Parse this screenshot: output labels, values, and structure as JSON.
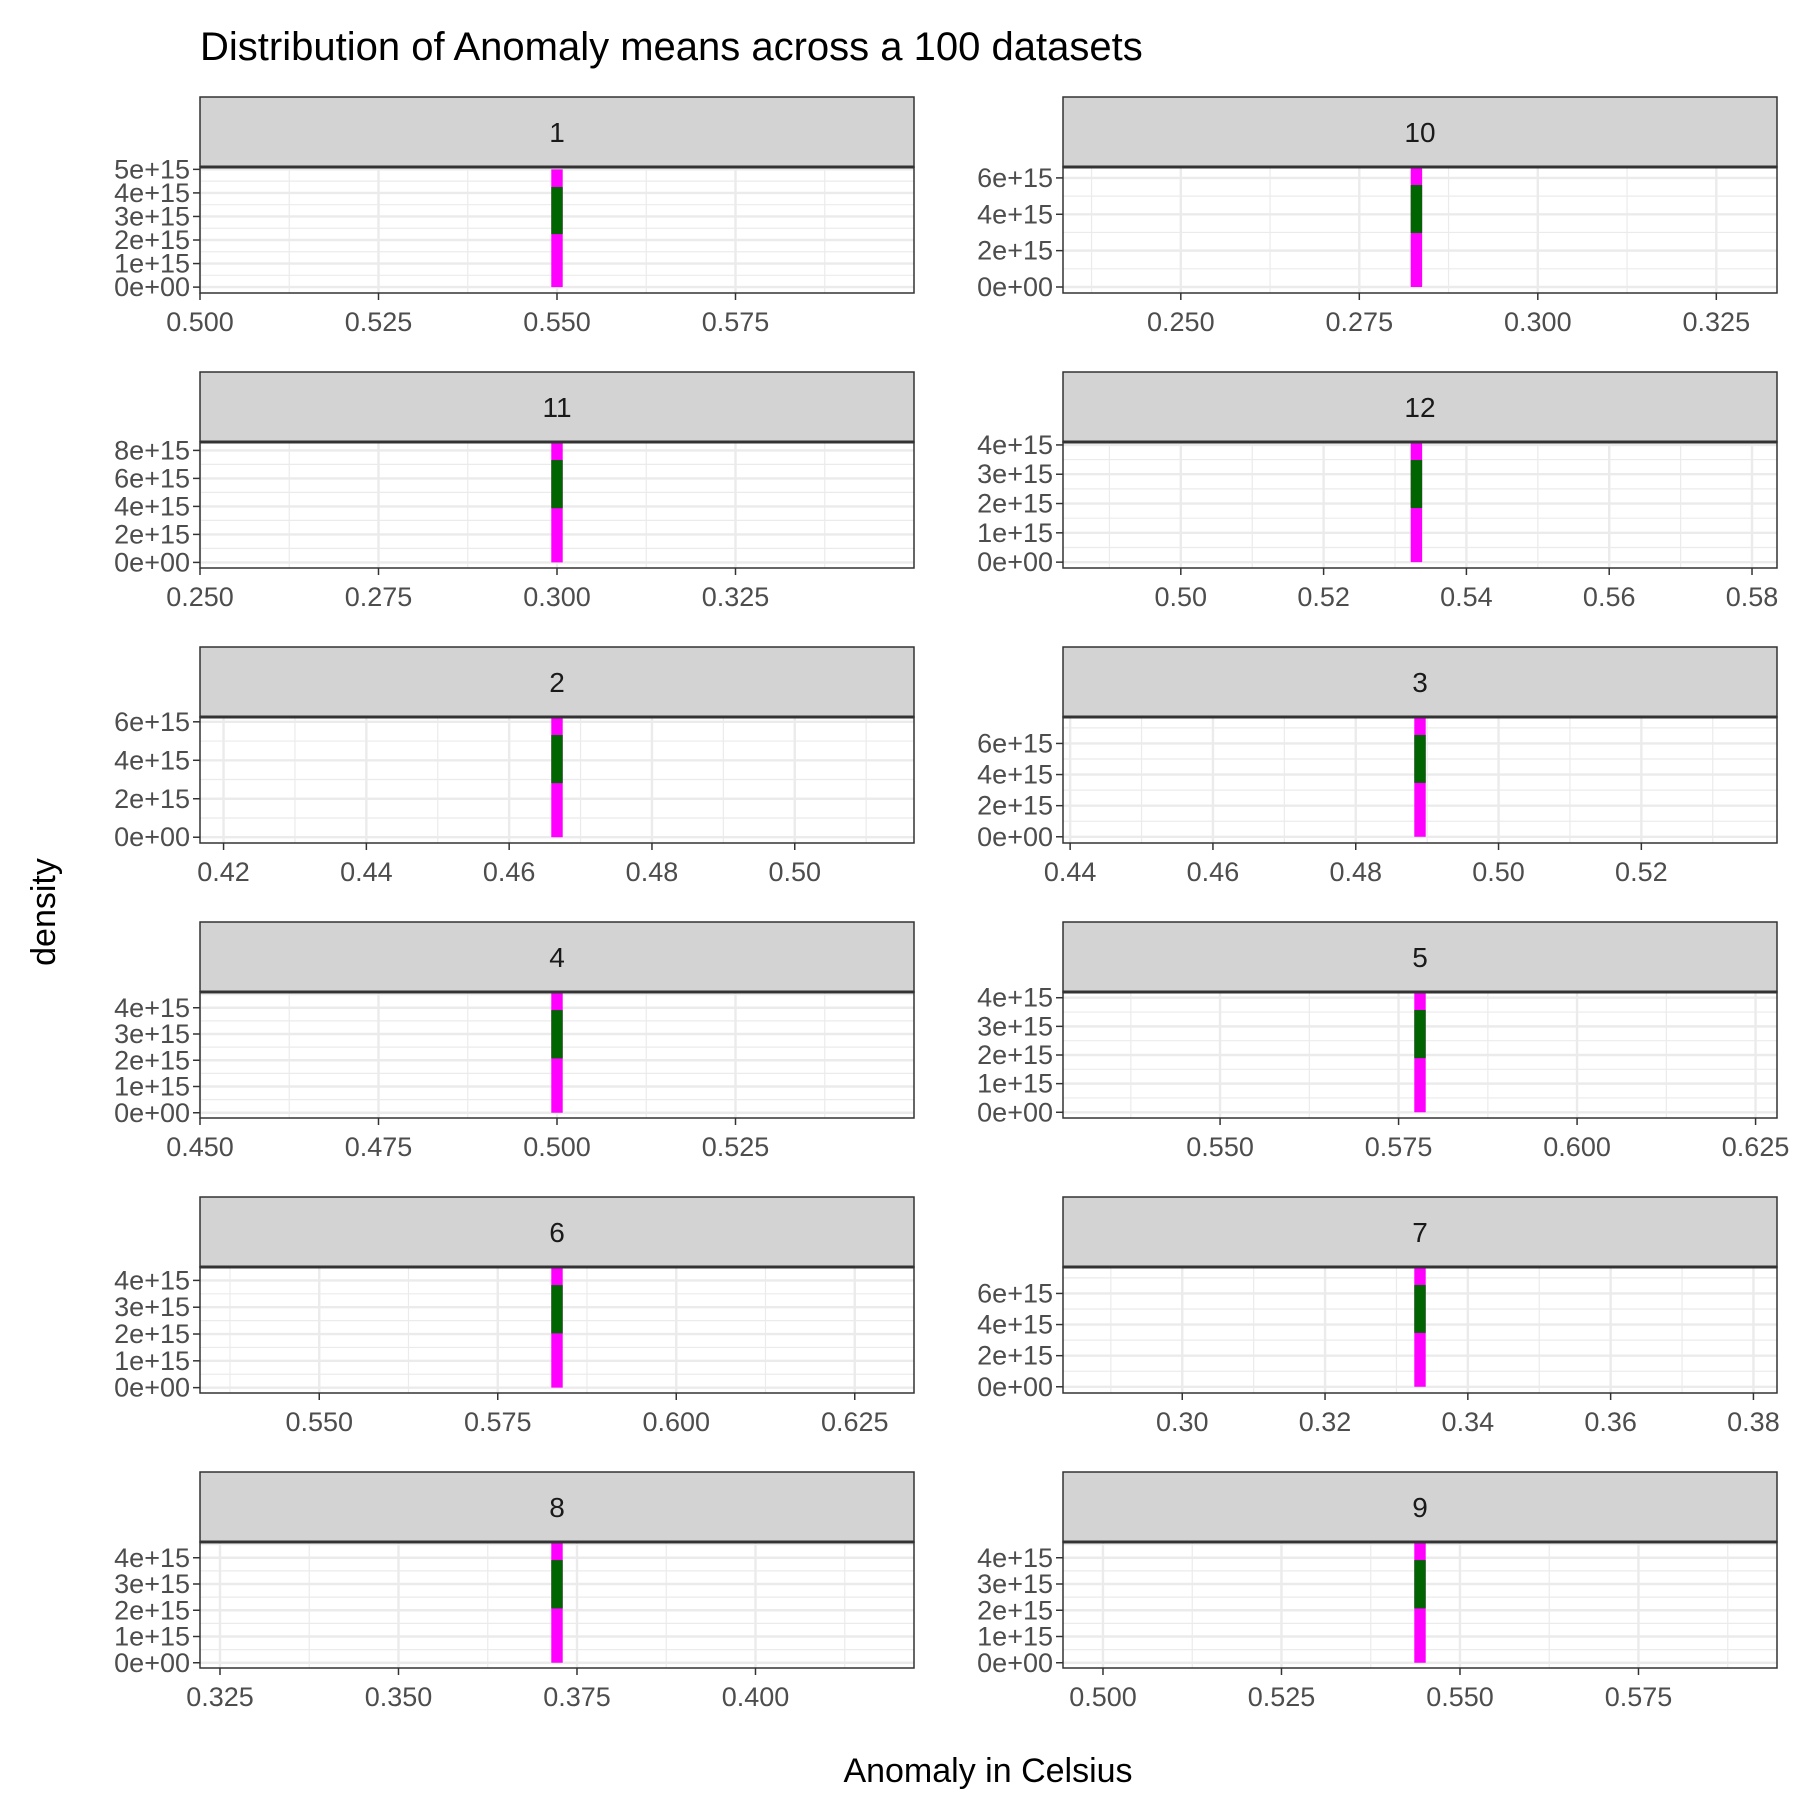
{
  "chart_data": {
    "type": "histogram-facets",
    "title": "Distribution of Anomaly means across a 100 datasets",
    "xlabel": "Anomaly in Celsius",
    "ylabel": "density",
    "grid": true,
    "colors": {
      "bar": "#ff00ff",
      "mean_segment": "#006400",
      "strip_bg": "#d3d3d3",
      "panel_bg": "#ffffff",
      "grid": "#ebebeb"
    },
    "panels": [
      {
        "label": "1",
        "value": 0.55,
        "x_ticks": [
          "0.500",
          "0.525",
          "0.550",
          "0.575"
        ],
        "x_tick_values": [
          0.5,
          0.525,
          0.55,
          0.575
        ],
        "xlim": [
          0.5,
          0.6
        ],
        "y_ticks": [
          "0e+00",
          "1e+15",
          "2e+15",
          "3e+15",
          "4e+15",
          "5e+15"
        ],
        "y_tick_values": [
          0,
          1,
          2,
          3,
          4,
          5
        ],
        "ylim": [
          -0.25,
          5.1
        ],
        "density_peak": 5.0
      },
      {
        "label": "10",
        "value": 0.283,
        "x_ticks": [
          "0.250",
          "0.275",
          "0.300",
          "0.325"
        ],
        "x_tick_values": [
          0.25,
          0.275,
          0.3,
          0.325
        ],
        "xlim": [
          0.2335,
          0.3335
        ],
        "y_ticks": [
          "0e+00",
          "2e+15",
          "4e+15",
          "6e+15"
        ],
        "y_tick_values": [
          0,
          2,
          4,
          6
        ],
        "ylim": [
          -0.33,
          6.6
        ],
        "density_peak": 6.6
      },
      {
        "label": "11",
        "value": 0.3,
        "x_ticks": [
          "0.250",
          "0.275",
          "0.300",
          "0.325"
        ],
        "x_tick_values": [
          0.25,
          0.275,
          0.3,
          0.325
        ],
        "xlim": [
          0.25,
          0.35
        ],
        "y_ticks": [
          "0e+00",
          "2e+15",
          "4e+15",
          "6e+15",
          "8e+15"
        ],
        "y_tick_values": [
          0,
          2,
          4,
          6,
          8
        ],
        "ylim": [
          -0.4,
          8.6
        ],
        "density_peak": 8.6
      },
      {
        "label": "12",
        "value": 0.533,
        "x_ticks": [
          "0.50",
          "0.52",
          "0.54",
          "0.56",
          "0.58"
        ],
        "x_tick_values": [
          0.5,
          0.52,
          0.54,
          0.56,
          0.58
        ],
        "xlim": [
          0.4835,
          0.5835
        ],
        "y_ticks": [
          "0e+00",
          "1e+15",
          "2e+15",
          "3e+15",
          "4e+15"
        ],
        "y_tick_values": [
          0,
          1,
          2,
          3,
          4
        ],
        "ylim": [
          -0.2,
          4.1
        ],
        "density_peak": 4.1
      },
      {
        "label": "2",
        "value": 0.4667,
        "x_ticks": [
          "0.42",
          "0.44",
          "0.46",
          "0.48",
          "0.50"
        ],
        "x_tick_values": [
          0.42,
          0.44,
          0.46,
          0.48,
          0.5
        ],
        "xlim": [
          0.4167,
          0.5167
        ],
        "y_ticks": [
          "0e+00",
          "2e+15",
          "4e+15",
          "6e+15"
        ],
        "y_tick_values": [
          0,
          2,
          4,
          6
        ],
        "ylim": [
          -0.3,
          6.25
        ],
        "density_peak": 6.25
      },
      {
        "label": "3",
        "value": 0.489,
        "x_ticks": [
          "0.44",
          "0.46",
          "0.48",
          "0.50",
          "0.52"
        ],
        "x_tick_values": [
          0.44,
          0.46,
          0.48,
          0.5,
          0.52
        ],
        "xlim": [
          0.439,
          0.539
        ],
        "y_ticks": [
          "0e+00",
          "2e+15",
          "4e+15",
          "6e+15"
        ],
        "y_tick_values": [
          0,
          2,
          4,
          6
        ],
        "ylim": [
          -0.4,
          7.7
        ],
        "density_peak": 7.7
      },
      {
        "label": "4",
        "value": 0.5,
        "x_ticks": [
          "0.450",
          "0.475",
          "0.500",
          "0.525"
        ],
        "x_tick_values": [
          0.45,
          0.475,
          0.5,
          0.525
        ],
        "xlim": [
          0.45,
          0.55
        ],
        "y_ticks": [
          "0e+00",
          "1e+15",
          "2e+15",
          "3e+15",
          "4e+15"
        ],
        "y_tick_values": [
          0,
          1,
          2,
          3,
          4
        ],
        "ylim": [
          -0.2,
          4.6
        ],
        "density_peak": 4.6
      },
      {
        "label": "5",
        "value": 0.578,
        "x_ticks": [
          "0.550",
          "0.575",
          "0.600",
          "0.625"
        ],
        "x_tick_values": [
          0.55,
          0.575,
          0.6,
          0.625
        ],
        "xlim": [
          0.528,
          0.628
        ],
        "y_ticks": [
          "0e+00",
          "1e+15",
          "2e+15",
          "3e+15",
          "4e+15"
        ],
        "y_tick_values": [
          0,
          1,
          2,
          3,
          4
        ],
        "ylim": [
          -0.2,
          4.2
        ],
        "density_peak": 4.2
      },
      {
        "label": "6",
        "value": 0.5833,
        "x_ticks": [
          "0.550",
          "0.575",
          "0.600",
          "0.625"
        ],
        "x_tick_values": [
          0.55,
          0.575,
          0.6,
          0.625
        ],
        "xlim": [
          0.5333,
          0.6333
        ],
        "y_ticks": [
          "0e+00",
          "1e+15",
          "2e+15",
          "3e+15",
          "4e+15"
        ],
        "y_tick_values": [
          0,
          1,
          2,
          3,
          4
        ],
        "ylim": [
          -0.2,
          4.5
        ],
        "density_peak": 4.5
      },
      {
        "label": "7",
        "value": 0.3333,
        "x_ticks": [
          "0.30",
          "0.32",
          "0.34",
          "0.36",
          "0.38"
        ],
        "x_tick_values": [
          0.3,
          0.32,
          0.34,
          0.36,
          0.38
        ],
        "xlim": [
          0.2833,
          0.3833
        ],
        "y_ticks": [
          "0e+00",
          "2e+15",
          "4e+15",
          "6e+15"
        ],
        "y_tick_values": [
          0,
          2,
          4,
          6
        ],
        "ylim": [
          -0.4,
          7.7
        ],
        "density_peak": 7.7
      },
      {
        "label": "8",
        "value": 0.3722,
        "x_ticks": [
          "0.325",
          "0.350",
          "0.375",
          "0.400"
        ],
        "x_tick_values": [
          0.325,
          0.35,
          0.375,
          0.4
        ],
        "xlim": [
          0.3222,
          0.4222
        ],
        "y_ticks": [
          "0e+00",
          "1e+15",
          "2e+15",
          "3e+15",
          "4e+15"
        ],
        "y_tick_values": [
          0,
          1,
          2,
          3,
          4
        ],
        "ylim": [
          -0.2,
          4.6
        ],
        "density_peak": 4.6
      },
      {
        "label": "9",
        "value": 0.5444,
        "x_ticks": [
          "0.500",
          "0.525",
          "0.550",
          "0.575"
        ],
        "x_tick_values": [
          0.5,
          0.525,
          0.55,
          0.575
        ],
        "xlim": [
          0.4944,
          0.5944
        ],
        "y_ticks": [
          "0e+00",
          "1e+15",
          "2e+15",
          "3e+15",
          "4e+15"
        ],
        "y_tick_values": [
          0,
          1,
          2,
          3,
          4
        ],
        "ylim": [
          -0.2,
          4.6
        ],
        "density_peak": 4.6
      }
    ]
  }
}
